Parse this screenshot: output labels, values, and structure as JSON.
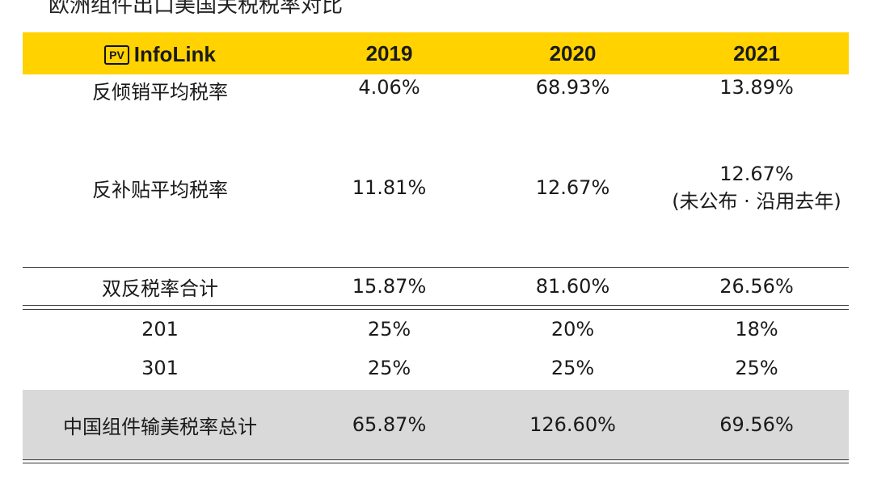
{
  "top_text": "欧洲组件出口美国关税税率对比",
  "logo": {
    "badge": "PV",
    "name": "InfoLink"
  },
  "columns": [
    "2019",
    "2020",
    "2021"
  ],
  "rows": [
    {
      "label": "反倾销平均税率",
      "values": [
        "4.06%",
        "68.93%",
        "13.89%"
      ]
    },
    {
      "label": "反补贴平均税率",
      "values": [
        "11.81%",
        "12.67%",
        "12.67%"
      ],
      "note_2021": "(未公布 · 沿用去年)"
    },
    {
      "label": "双反税率合计",
      "values": [
        "15.87%",
        "81.60%",
        "26.56%"
      ]
    },
    {
      "label": "201",
      "values": [
        "25%",
        "20%",
        "18%"
      ]
    },
    {
      "label": "301",
      "values": [
        "25%",
        "25%",
        "25%"
      ]
    },
    {
      "label": "中国组件输美税率总计",
      "values": [
        "65.87%",
        "126.60%",
        "69.56%"
      ]
    }
  ],
  "colors": {
    "header": "#ffd200",
    "total_row": "#d9d9d9"
  }
}
